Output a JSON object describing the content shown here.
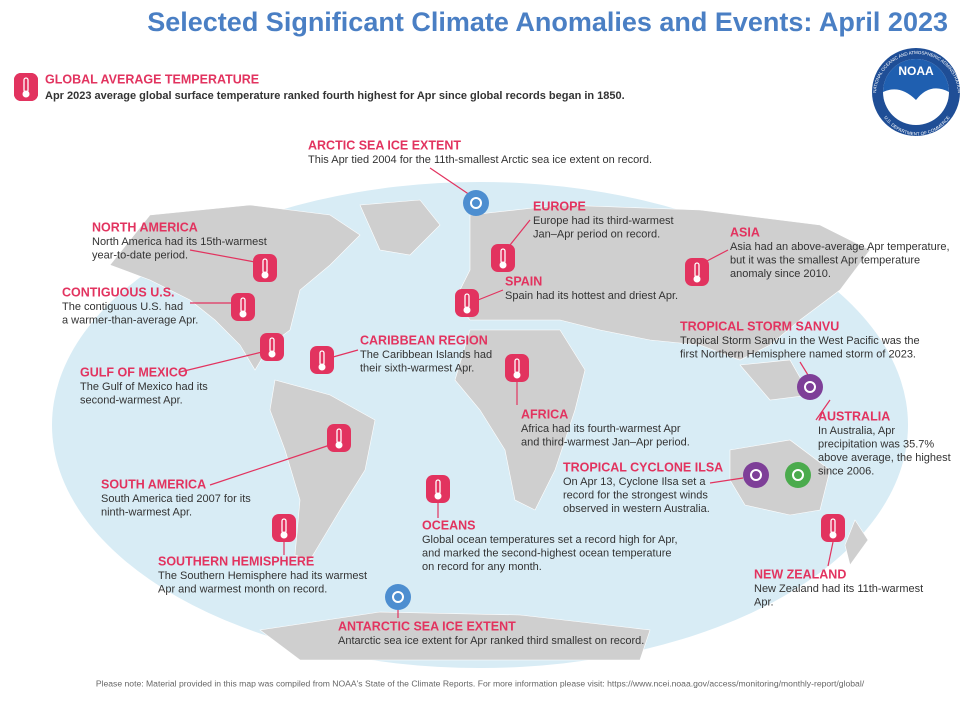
{
  "title": "Selected Significant Climate Anomalies and Events: April 2023",
  "global": {
    "heading": "GLOBAL AVERAGE TEMPERATURE",
    "text": "Apr 2023 average global surface temperature ranked fourth highest for Apr since global records began in 1850."
  },
  "logo": {
    "text": "NOAA",
    "ring_top": "NATIONAL OCEANIC AND ATMOSPHERIC ADMINISTRATION",
    "ring_bottom": "U.S. DEPARTMENT OF COMMERCE"
  },
  "annotations": [
    {
      "heading": "ARCTIC SEA ICE EXTENT",
      "lines": [
        "This Apr tied 2004 for the 11th-smallest Arctic sea ice extent on record."
      ]
    },
    {
      "heading": "EUROPE",
      "lines": [
        "Europe had its third-warmest",
        "Jan–Apr period on record."
      ]
    },
    {
      "heading": "NORTH AMERICA",
      "lines": [
        "North America had its 15th-warmest",
        "year-to-date period."
      ]
    },
    {
      "heading": "ASIA",
      "lines": [
        "Asia had an above-average Apr temperature,",
        "but it was the smallest Apr temperature",
        "anomaly since 2010."
      ]
    },
    {
      "heading": "SPAIN",
      "lines": [
        "Spain had its hottest and driest Apr."
      ]
    },
    {
      "heading": "CONTIGUOUS U.S.",
      "lines": [
        "The contiguous U.S. had",
        "a warmer-than-average Apr."
      ]
    },
    {
      "heading": "TROPICAL STORM SANVU",
      "lines": [
        "Tropical Storm Sanvu in the West Pacific was the",
        "first Northern Hemisphere named storm of 2023."
      ]
    },
    {
      "heading": "CARIBBEAN REGION",
      "lines": [
        "The Caribbean Islands had",
        "their sixth-warmest Apr."
      ]
    },
    {
      "heading": "GULF OF MEXICO",
      "lines": [
        "The Gulf of Mexico had its",
        "second-warmest Apr."
      ]
    },
    {
      "heading": "AFRICA",
      "lines": [
        "Africa had its fourth-warmest Apr",
        "and third-warmest Jan–Apr period."
      ]
    },
    {
      "heading": "AUSTRALIA",
      "lines": [
        "In Australia, Apr",
        "precipitation was 35.7%",
        "above average, the highest",
        "since 2006."
      ]
    },
    {
      "heading": "TROPICAL CYCLONE ILSA",
      "lines": [
        "On Apr 13, Cyclone Ilsa set a",
        "record for the strongest winds",
        "observed in western Australia."
      ]
    },
    {
      "heading": "SOUTH AMERICA",
      "lines": [
        "South America tied 2007 for its",
        "ninth-warmest Apr."
      ]
    },
    {
      "heading": "OCEANS",
      "lines": [
        "Global ocean temperatures set a record high for Apr,",
        "and marked the second-highest ocean temperature",
        "on record for any month."
      ]
    },
    {
      "heading": "SOUTHERN HEMISPHERE",
      "lines": [
        "The Southern Hemisphere had its warmest",
        "Apr and warmest month on record."
      ]
    },
    {
      "heading": "NEW ZEALAND",
      "lines": [
        "New Zealand had its 11th-warmest",
        "Apr."
      ]
    },
    {
      "heading": "ANTARCTIC SEA ICE EXTENT",
      "lines": [
        "Antarctic sea ice extent for Apr ranked third smallest on record."
      ]
    }
  ],
  "footer": "Please note: Material provided in this map was compiled from NOAA's State of the Climate Reports. For more information please visit: https://www.ncei.noaa.gov/access/monitoring/monthly-report/global/"
}
